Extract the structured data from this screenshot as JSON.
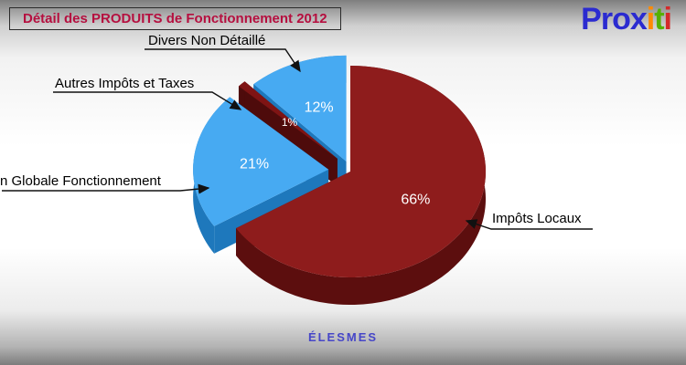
{
  "header": {
    "title": "Détail des PRODUITS de Fonctionnement 2012"
  },
  "logo": {
    "letters": [
      {
        "ch": "P",
        "color": "#2b2bd0"
      },
      {
        "ch": "r",
        "color": "#2b2bd0"
      },
      {
        "ch": "o",
        "color": "#2b2bd0"
      },
      {
        "ch": "x",
        "color": "#2b2bd0"
      },
      {
        "ch": "i",
        "color": "#ff8a00"
      },
      {
        "ch": "t",
        "color": "#56b000"
      },
      {
        "ch": "i",
        "color": "#d42a2a"
      }
    ]
  },
  "annotations": {
    "divers": "Divers Non Détaillé",
    "autres": "Autres Impôts et Taxes",
    "dotation": "n Globale Fonctionnement",
    "impots": "Impôts Locaux"
  },
  "footer": {
    "commune": "ÉLESMES"
  },
  "chart_data": {
    "type": "pie",
    "title": "Détail des PRODUITS de Fonctionnement 2012",
    "unit": "%",
    "start_angle_deg": 0,
    "slices": [
      {
        "label": "Impôts Locaux",
        "value": 66,
        "display": "66%",
        "color": "#8e1c1c",
        "side": "#5c0e0e",
        "explode": 0
      },
      {
        "label": "n Globale Fonctionnement",
        "value": 21,
        "display": "21%",
        "color": "#47aaf2",
        "side": "#1e78bc",
        "explode": 24
      },
      {
        "label": "Autres Impôts et Taxes",
        "value": 1,
        "display": "1%",
        "color": "#7f1414",
        "side": "#4e0b0b",
        "explode": 20
      },
      {
        "label": "Divers Non Détaillé",
        "value": 12,
        "display": "12%",
        "color": "#47aaf2",
        "side": "#1e78bc",
        "explode": 12
      }
    ]
  }
}
